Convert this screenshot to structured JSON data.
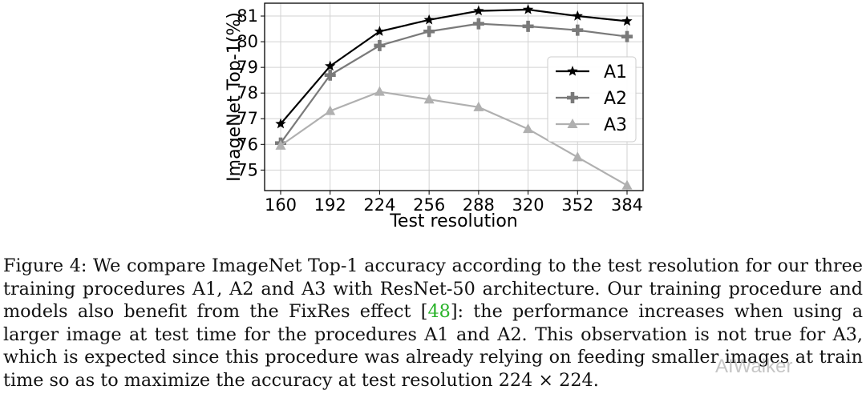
{
  "chart_data": {
    "type": "line",
    "title": "",
    "xlabel": "Test resolution",
    "ylabel": "ImageNet Top-1(%)",
    "categories": [
      "160",
      "192",
      "224",
      "256",
      "288",
      "320",
      "352",
      "384"
    ],
    "yticks": [
      "75",
      "76",
      "77",
      "78",
      "79",
      "80",
      "81"
    ],
    "ylim": [
      74.2,
      81.5
    ],
    "grid": true,
    "legend_position": "right",
    "series": [
      {
        "name": "A1",
        "marker": "star",
        "color": "#000000",
        "values": [
          76.8,
          79.05,
          80.4,
          80.85,
          81.2,
          81.25,
          81.0,
          80.8
        ]
      },
      {
        "name": "A2",
        "marker": "plus",
        "color": "#7a7a7a",
        "values": [
          76.05,
          78.7,
          79.85,
          80.4,
          80.7,
          80.6,
          80.45,
          80.2
        ]
      },
      {
        "name": "A3",
        "marker": "triangle",
        "color": "#b0b0b0",
        "values": [
          75.95,
          77.3,
          78.05,
          77.75,
          77.45,
          76.6,
          75.5,
          74.4
        ]
      }
    ]
  },
  "caption": {
    "prefix": "Figure 4: We compare ImageNet Top-1 accuracy according to the test resolution for our three training procedures A1, A2 and A3 with ResNet-50 architecture. Our training procedure and models also benefit from the FixRes effect [",
    "ref": "48",
    "suffix": "]: the performance increases when using a larger image at test time for the procedures A1 and A2. This observation is not true for A3, which is expected since this procedure was already relying on feeding smaller images at train time so as to maximize the accuracy at test resolution 224 × 224."
  },
  "watermark": "AIWalker"
}
